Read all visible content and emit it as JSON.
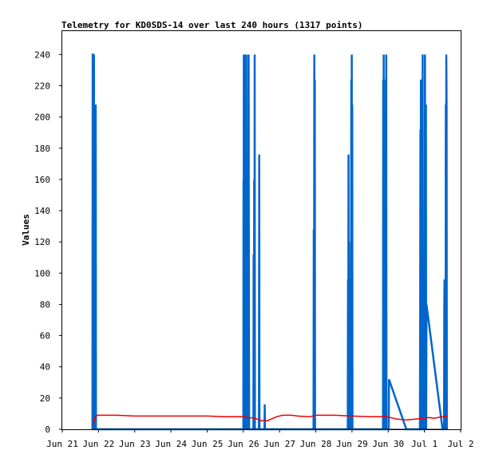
{
  "chart_data": {
    "type": "line",
    "title": "Telemetry for KD0SDS-14 over last 240 hours (1317 points)",
    "xlabel": "",
    "ylabel": "Values",
    "x_axis": {
      "type": "date",
      "min": "Jun 21",
      "max": "Jul 2",
      "tick_labels": [
        "Jun 21",
        "Jun 22",
        "Jun 23",
        "Jun 24",
        "Jun 25",
        "Jun 26",
        "Jun 27",
        "Jun 28",
        "Jun 29",
        "Jun 30",
        "Jul 1",
        "Jul 2"
      ]
    },
    "y_axis": {
      "min": 0,
      "max": 255,
      "tick_values": [
        0,
        20,
        40,
        60,
        80,
        100,
        120,
        140,
        160,
        180,
        200,
        220,
        240
      ]
    },
    "grid": false,
    "legend": "none",
    "series": [
      {
        "color": "#0066cc",
        "line_width": 2.5,
        "points": [
          [
            "2024-06-21 20:00",
            0
          ],
          [
            "2024-06-21 20:10",
            240
          ],
          [
            "2024-06-21 20:20",
            240
          ],
          [
            "2024-06-21 20:30",
            0
          ],
          [
            "2024-06-21 20:40",
            240
          ],
          [
            "2024-06-21 20:50",
            160
          ],
          [
            "2024-06-21 21:00",
            240
          ],
          [
            "2024-06-21 21:10",
            80
          ],
          [
            "2024-06-21 21:20",
            0
          ],
          [
            "2024-06-21 21:30",
            176
          ],
          [
            "2024-06-21 21:40",
            0
          ],
          [
            "2024-06-21 21:50",
            160
          ],
          [
            "2024-06-21 22:00",
            0
          ],
          [
            "2024-06-21 22:10",
            208
          ],
          [
            "2024-06-21 22:20",
            0
          ],
          [
            "2024-06-26 00:00",
            0
          ],
          [
            "2024-06-26 00:05",
            160
          ],
          [
            "2024-06-26 00:10",
            0
          ],
          [
            "2024-06-26 00:20",
            240
          ],
          [
            "2024-06-26 00:30",
            0
          ],
          [
            "2024-06-26 00:40",
            128
          ],
          [
            "2024-06-26 00:50",
            0
          ],
          [
            "2024-06-26 01:00",
            240
          ],
          [
            "2024-06-26 01:10",
            96
          ],
          [
            "2024-06-26 01:20",
            240
          ],
          [
            "2024-06-26 01:30",
            0
          ],
          [
            "2024-06-26 01:40",
            240
          ],
          [
            "2024-06-26 01:50",
            128
          ],
          [
            "2024-06-26 02:00",
            0
          ],
          [
            "2024-06-26 02:10",
            72
          ],
          [
            "2024-06-26 02:20",
            0
          ],
          [
            "2024-06-26 02:30",
            96
          ],
          [
            "2024-06-26 02:40",
            24
          ],
          [
            "2024-06-26 02:50",
            88
          ],
          [
            "2024-06-26 03:00",
            0
          ],
          [
            "2024-06-26 03:10",
            240
          ],
          [
            "2024-06-26 03:20",
            0
          ],
          [
            "2024-06-26 03:30",
            240
          ],
          [
            "2024-06-26 03:40",
            120
          ],
          [
            "2024-06-26 03:50",
            0
          ],
          [
            "2024-06-26 06:40",
            0
          ],
          [
            "2024-06-26 06:50",
            112
          ],
          [
            "2024-06-26 07:00",
            0
          ],
          [
            "2024-06-26 07:10",
            160
          ],
          [
            "2024-06-26 07:20",
            0
          ],
          [
            "2024-06-26 07:30",
            240
          ],
          [
            "2024-06-26 07:40",
            0
          ],
          [
            "2024-06-26 10:20",
            0
          ],
          [
            "2024-06-26 10:30",
            176
          ],
          [
            "2024-06-26 10:40",
            0
          ],
          [
            "2024-06-26 14:00",
            0
          ],
          [
            "2024-06-26 14:10",
            16
          ],
          [
            "2024-06-26 14:20",
            0
          ],
          [
            "2024-06-27 22:30",
            0
          ],
          [
            "2024-06-27 22:40",
            128
          ],
          [
            "2024-06-27 22:50",
            0
          ],
          [
            "2024-06-27 23:00",
            240
          ],
          [
            "2024-06-27 23:10",
            0
          ],
          [
            "2024-06-27 23:20",
            224
          ],
          [
            "2024-06-27 23:30",
            0
          ],
          [
            "2024-06-28 21:10",
            0
          ],
          [
            "2024-06-28 21:20",
            96
          ],
          [
            "2024-06-28 21:30",
            0
          ],
          [
            "2024-06-28 21:40",
            176
          ],
          [
            "2024-06-28 21:50",
            40
          ],
          [
            "2024-06-28 22:00",
            120
          ],
          [
            "2024-06-28 22:10",
            64
          ],
          [
            "2024-06-28 22:20",
            0
          ],
          [
            "2024-06-28 22:30",
            48
          ],
          [
            "2024-06-28 22:40",
            0
          ],
          [
            "2024-06-28 22:50",
            32
          ],
          [
            "2024-06-28 23:00",
            0
          ],
          [
            "2024-06-28 23:10",
            96
          ],
          [
            "2024-06-28 23:20",
            0
          ],
          [
            "2024-06-28 23:30",
            224
          ],
          [
            "2024-06-28 23:40",
            0
          ],
          [
            "2024-06-28 23:50",
            240
          ],
          [
            "2024-06-29 00:00",
            0
          ],
          [
            "2024-06-29 00:10",
            208
          ],
          [
            "2024-06-29 00:20",
            0
          ],
          [
            "2024-06-29 20:30",
            0
          ],
          [
            "2024-06-29 20:40",
            224
          ],
          [
            "2024-06-29 20:50",
            0
          ],
          [
            "2024-06-29 21:00",
            240
          ],
          [
            "2024-06-29 21:10",
            0
          ],
          [
            "2024-06-29 21:20",
            224
          ],
          [
            "2024-06-29 21:30",
            0
          ],
          [
            "2024-06-29 22:30",
            0
          ],
          [
            "2024-06-29 22:40",
            240
          ],
          [
            "2024-06-29 22:50",
            0
          ],
          [
            "2024-06-30 00:20",
            0
          ],
          [
            "2024-06-30 00:30",
            32
          ],
          [
            "2024-06-30 12:00",
            0
          ],
          [
            "2024-06-30 21:00",
            0
          ],
          [
            "2024-06-30 21:10",
            80
          ],
          [
            "2024-06-30 21:20",
            192
          ],
          [
            "2024-06-30 21:30",
            0
          ],
          [
            "2024-06-30 21:40",
            224
          ],
          [
            "2024-06-30 21:50",
            0
          ],
          [
            "2024-06-30 22:40",
            0
          ],
          [
            "2024-06-30 22:50",
            240
          ],
          [
            "2024-06-30 23:00",
            64
          ],
          [
            "2024-06-30 23:10",
            48
          ],
          [
            "2024-06-30 23:20",
            0
          ],
          [
            "2024-07-01 00:10",
            0
          ],
          [
            "2024-07-01 00:20",
            240
          ],
          [
            "2024-07-01 00:30",
            0
          ],
          [
            "2024-07-01 00:40",
            208
          ],
          [
            "2024-07-01 00:50",
            64
          ],
          [
            "2024-07-01 01:00",
            208
          ],
          [
            "2024-07-01 01:10",
            0
          ],
          [
            "2024-07-01 01:20",
            80
          ],
          [
            "2024-07-01 12:00",
            0
          ],
          [
            "2024-07-01 13:00",
            0
          ],
          [
            "2024-07-01 13:10",
            80
          ],
          [
            "2024-07-01 13:20",
            96
          ],
          [
            "2024-07-01 13:30",
            0
          ],
          [
            "2024-07-01 13:40",
            96
          ],
          [
            "2024-07-01 13:50",
            48
          ],
          [
            "2024-07-01 14:00",
            0
          ],
          [
            "2024-07-01 14:10",
            208
          ],
          [
            "2024-07-01 14:20",
            0
          ],
          [
            "2024-07-01 14:30",
            240
          ],
          [
            "2024-07-01 14:40",
            208
          ],
          [
            "2024-07-01 14:50",
            0
          ]
        ]
      },
      {
        "color": "#ee0000",
        "line_width": 1.5,
        "points": [
          [
            "2024-06-21 20:30",
            3
          ],
          [
            "2024-06-21 21:30",
            7
          ],
          [
            "2024-06-21 23:00",
            9
          ],
          [
            "2024-06-22 12:00",
            9
          ],
          [
            "2024-06-23 00:00",
            8.5
          ],
          [
            "2024-06-24 00:00",
            8.5
          ],
          [
            "2024-06-25 00:00",
            8.5
          ],
          [
            "2024-06-25 12:00",
            8
          ],
          [
            "2024-06-26 00:00",
            8
          ],
          [
            "2024-06-26 08:00",
            7
          ],
          [
            "2024-06-26 12:00",
            5.5
          ],
          [
            "2024-06-26 16:00",
            5.5
          ],
          [
            "2024-06-26 22:00",
            8
          ],
          [
            "2024-06-27 02:00",
            9
          ],
          [
            "2024-06-27 08:00",
            9
          ],
          [
            "2024-06-27 12:00",
            8.5
          ],
          [
            "2024-06-27 20:00",
            8
          ],
          [
            "2024-06-28 00:00",
            9
          ],
          [
            "2024-06-28 12:00",
            9
          ],
          [
            "2024-06-29 00:00",
            8.5
          ],
          [
            "2024-06-29 12:00",
            8
          ],
          [
            "2024-06-29 23:00",
            8
          ],
          [
            "2024-06-30 06:00",
            6.5
          ],
          [
            "2024-06-30 12:00",
            6
          ],
          [
            "2024-06-30 18:00",
            6.5
          ],
          [
            "2024-06-30 23:00",
            7
          ],
          [
            "2024-07-01 03:00",
            7.5
          ],
          [
            "2024-07-01 06:00",
            7
          ],
          [
            "2024-07-01 12:00",
            8
          ],
          [
            "2024-07-01 15:00",
            8
          ]
        ]
      },
      {
        "color": "#000000",
        "line_width": 1,
        "points": [
          [
            "2024-06-21 20:00",
            0
          ],
          [
            "2024-07-01 15:00",
            0
          ]
        ]
      }
    ]
  }
}
